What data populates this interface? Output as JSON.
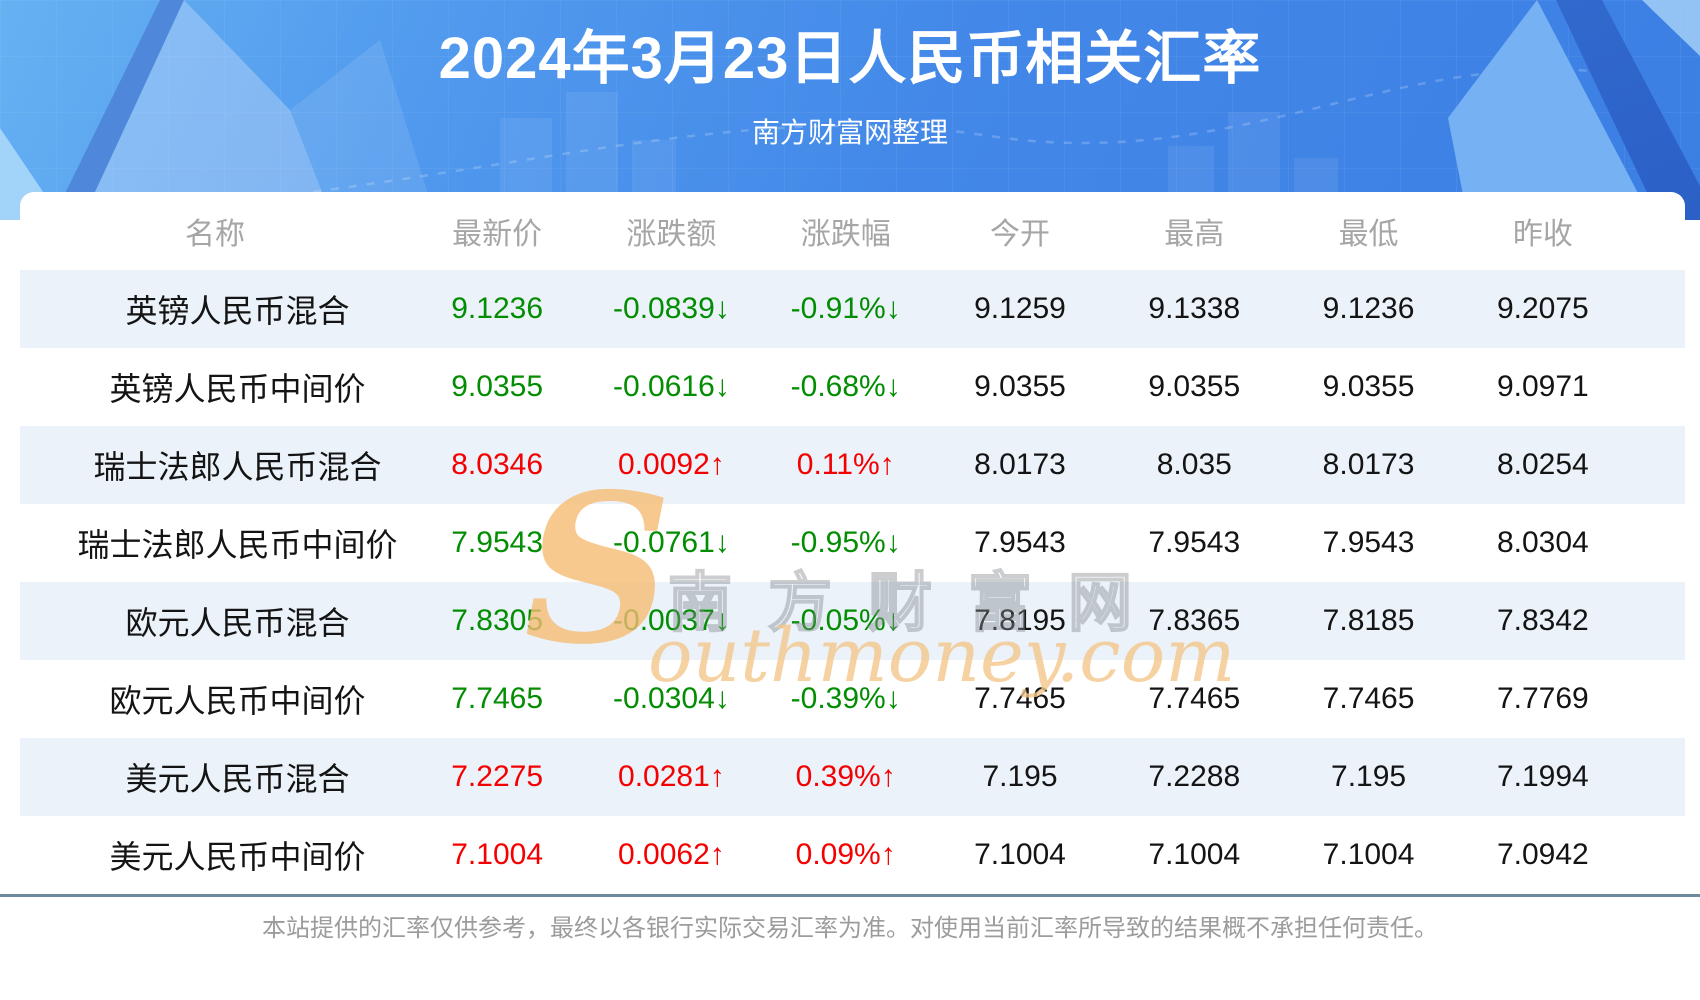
{
  "hero": {
    "title": "2024年3月23日人民币相关汇率",
    "subtitle": "南方财富网整理"
  },
  "watermark": {
    "cn": "南方财富网",
    "en_initial": "S",
    "en_rest": "outhmoney.com"
  },
  "table": {
    "columns": [
      "名称",
      "最新价",
      "涨跌额",
      "涨跌幅",
      "今开",
      "最高",
      "最低",
      "昨收"
    ],
    "rows": [
      {
        "name": "英镑人民币混合",
        "latest": "9.1236",
        "change": "-0.0839↓",
        "change_pct": "-0.91%↓",
        "open": "9.1259",
        "high": "9.1338",
        "low": "9.1236",
        "prev_close": "9.2075",
        "trend": "down"
      },
      {
        "name": "英镑人民币中间价",
        "latest": "9.0355",
        "change": "-0.0616↓",
        "change_pct": "-0.68%↓",
        "open": "9.0355",
        "high": "9.0355",
        "low": "9.0355",
        "prev_close": "9.0971",
        "trend": "down"
      },
      {
        "name": "瑞士法郎人民币混合",
        "latest": "8.0346",
        "change": "0.0092↑",
        "change_pct": "0.11%↑",
        "open": "8.0173",
        "high": "8.035",
        "low": "8.0173",
        "prev_close": "8.0254",
        "trend": "up"
      },
      {
        "name": "瑞士法郎人民币中间价",
        "latest": "7.9543",
        "change": "-0.0761↓",
        "change_pct": "-0.95%↓",
        "open": "7.9543",
        "high": "7.9543",
        "low": "7.9543",
        "prev_close": "8.0304",
        "trend": "down"
      },
      {
        "name": "欧元人民币混合",
        "latest": "7.8305",
        "change": "-0.0037↓",
        "change_pct": "-0.05%↓",
        "open": "7.8195",
        "high": "7.8365",
        "low": "7.8185",
        "prev_close": "7.8342",
        "trend": "down"
      },
      {
        "name": "欧元人民币中间价",
        "latest": "7.7465",
        "change": "-0.0304↓",
        "change_pct": "-0.39%↓",
        "open": "7.7465",
        "high": "7.7465",
        "low": "7.7465",
        "prev_close": "7.7769",
        "trend": "down"
      },
      {
        "name": "美元人民币混合",
        "latest": "7.2275",
        "change": "0.0281↑",
        "change_pct": "0.39%↑",
        "open": "7.195",
        "high": "7.2288",
        "low": "7.195",
        "prev_close": "7.1994",
        "trend": "up"
      },
      {
        "name": "美元人民币中间价",
        "latest": "7.1004",
        "change": "0.0062↑",
        "change_pct": "0.09%↑",
        "open": "7.1004",
        "high": "7.1004",
        "low": "7.1004",
        "prev_close": "7.0942",
        "trend": "up"
      }
    ]
  },
  "footer": {
    "disclaimer": "本站提供的汇率仅供参考，最终以各银行实际交易汇率为准。对使用当前汇率所导致的结果概不承担任何责任。"
  },
  "colors": {
    "up": "#f50000",
    "down": "#028d02",
    "stripe": "#ebf2fa",
    "divider": "#6e8a9e",
    "accent_blue": "#4388e8"
  }
}
